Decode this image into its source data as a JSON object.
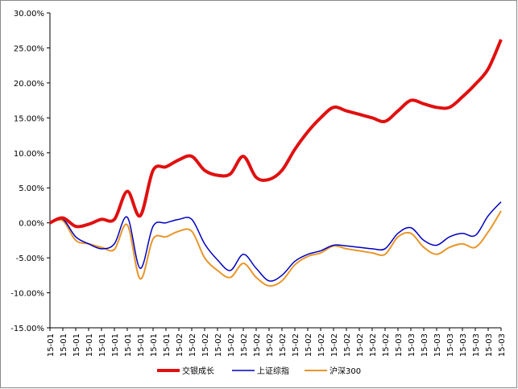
{
  "chart_data": {
    "type": "line",
    "categories": [
      "15-01",
      "15-01",
      "15-01",
      "15-01",
      "15-01",
      "15-01",
      "15-01",
      "15-01",
      "15-01",
      "15-01",
      "15-02",
      "15-02",
      "15-02",
      "15-02",
      "15-02",
      "15-02",
      "15-02",
      "15-02",
      "15-02",
      "15-02",
      "15-02",
      "15-02",
      "15-02",
      "15-02",
      "15-02",
      "15-02",
      "15-02",
      "15-03",
      "15-03",
      "15-03",
      "15-03",
      "15-03",
      "15-03",
      "15-03",
      "15-03",
      "15-03"
    ],
    "series": [
      {
        "name": "交银成长",
        "color": "#e01010",
        "values": [
          0,
          0.7,
          -0.5,
          -0.2,
          0.5,
          0.5,
          4.5,
          1.0,
          7.5,
          8.0,
          9.0,
          9.5,
          7.5,
          6.8,
          7.0,
          9.5,
          6.5,
          6.2,
          7.5,
          10.5,
          13.0,
          15.0,
          16.5,
          16.0,
          15.5,
          15.0,
          14.5,
          16.0,
          17.5,
          17.0,
          16.5,
          16.5,
          18.0,
          19.8,
          22.0,
          26.2
        ]
      },
      {
        "name": "上证综指",
        "color": "#0000c0",
        "values": [
          0,
          0.5,
          -2,
          -3,
          -3.7,
          -3,
          0.8,
          -6.5,
          -0.5,
          0,
          0.5,
          0.5,
          -3,
          -5.3,
          -6.8,
          -4.5,
          -6.5,
          -8.3,
          -7.5,
          -5.5,
          -4.5,
          -4,
          -3.2,
          -3.3,
          -3.5,
          -3.7,
          -3.7,
          -1.5,
          -0.7,
          -2.5,
          -3.2,
          -2,
          -1.5,
          -1.8,
          1,
          3
        ]
      },
      {
        "name": "沪深300",
        "color": "#e8962a",
        "values": [
          0,
          0.3,
          -2.5,
          -3,
          -3.5,
          -3.8,
          -0.3,
          -8,
          -2.3,
          -2,
          -1.2,
          -1.2,
          -5,
          -6.8,
          -7.8,
          -5.8,
          -7.8,
          -9,
          -8.3,
          -6,
          -4.8,
          -4.3,
          -3.3,
          -3.7,
          -4,
          -4.3,
          -4.5,
          -2,
          -1.5,
          -3.5,
          -4.5,
          -3.5,
          -3,
          -3.5,
          -1.3,
          1.7
        ]
      }
    ],
    "ylim": [
      -15,
      30
    ],
    "yticks": [
      {
        "value": -15,
        "label": "-15.00%"
      },
      {
        "value": -10,
        "label": "-10.00%"
      },
      {
        "value": -5,
        "label": "-5.00%"
      },
      {
        "value": 0,
        "label": "0.00%"
      },
      {
        "value": 5,
        "label": "5.00%"
      },
      {
        "value": 10,
        "label": "10.00%"
      },
      {
        "value": 15,
        "label": "15.00%"
      },
      {
        "value": 20,
        "label": "20.00%"
      },
      {
        "value": 25,
        "label": "25.00%"
      },
      {
        "value": 30,
        "label": "30.00%"
      }
    ],
    "legend": "bottom"
  }
}
